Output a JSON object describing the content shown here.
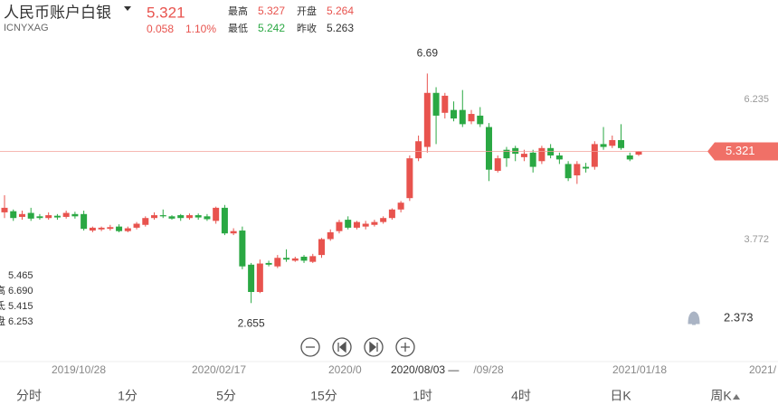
{
  "header": {
    "title": "人民币账户白银",
    "code": "ICNYXAG",
    "price": 5.321,
    "change": 0.058,
    "change_pct": "1.10%",
    "stats": [
      {
        "label": "最高",
        "value": 5.327
      },
      {
        "label": "开盘",
        "value": 5.264
      },
      {
        "label": "最低",
        "value": 5.242
      },
      {
        "label": "昨收",
        "value": 5.263
      }
    ]
  },
  "side_info": [
    {
      "label": "",
      "value": "5.465"
    },
    {
      "label": "高",
      "value": "6.690"
    },
    {
      "label": "氐",
      "value": "5.415"
    },
    {
      "label": "盘",
      "value": "6.253"
    }
  ],
  "chart_data": {
    "type": "candlestick",
    "up_color": "#e8534e",
    "down_color": "#2aa843",
    "ylim": [
      1.706,
      7.268
    ],
    "yticks": [
      3.772,
      6.235
    ],
    "open": [
      4.25,
      4.27,
      4.17,
      4.24,
      4.18,
      4.15,
      4.19,
      4.17,
      4.22,
      4.22,
      3.93,
      3.95,
      3.96,
      4.0,
      3.92,
      3.98,
      4.03,
      4.15,
      4.2,
      4.18,
      4.2,
      4.15,
      4.2,
      4.18,
      4.1,
      4.33,
      3.88,
      3.93,
      3.33,
      2.85,
      3.36,
      3.3,
      3.45,
      3.4,
      3.47,
      3.38,
      3.5,
      3.78,
      3.92,
      4.12,
      3.98,
      4.0,
      4.03,
      4.08,
      4.15,
      4.3,
      4.5,
      5.2,
      5.4,
      6.35,
      6.0,
      6.05,
      6.05,
      5.85,
      5.95,
      5.75,
      4.98,
      5.35,
      5.38,
      5.22,
      5.3,
      5.15,
      5.38,
      5.25,
      5.1,
      4.9,
      5.05,
      5.05,
      5.45,
      5.42,
      5.52,
      5.25,
      5.264
    ],
    "high": [
      4.55,
      4.3,
      4.28,
      4.33,
      4.22,
      4.25,
      4.22,
      4.28,
      4.26,
      4.28,
      4.0,
      4.0,
      4.03,
      4.04,
      4.0,
      4.08,
      4.18,
      4.25,
      4.3,
      4.2,
      4.22,
      4.23,
      4.23,
      4.22,
      4.35,
      4.38,
      3.97,
      4.0,
      3.36,
      3.42,
      3.4,
      3.5,
      3.6,
      3.47,
      3.5,
      3.52,
      3.8,
      3.95,
      4.12,
      4.18,
      4.1,
      4.1,
      4.12,
      4.18,
      4.32,
      4.45,
      5.25,
      5.6,
      6.69,
      6.45,
      6.35,
      6.2,
      6.4,
      6.05,
      6.1,
      5.82,
      5.25,
      5.4,
      5.42,
      5.35,
      5.35,
      5.42,
      5.45,
      5.3,
      5.15,
      5.15,
      5.12,
      5.5,
      5.75,
      5.6,
      5.8,
      5.3,
      5.327
    ],
    "low": [
      4.15,
      4.1,
      4.12,
      4.1,
      4.12,
      4.12,
      4.12,
      4.14,
      4.14,
      3.93,
      3.9,
      3.92,
      3.93,
      3.9,
      3.9,
      3.95,
      4.0,
      4.12,
      4.15,
      4.12,
      4.1,
      4.12,
      4.12,
      4.1,
      4.05,
      3.85,
      3.85,
      3.25,
      2.655,
      2.83,
      3.3,
      3.27,
      3.38,
      3.38,
      3.36,
      3.36,
      3.45,
      3.75,
      3.88,
      3.95,
      3.95,
      3.95,
      4.0,
      4.05,
      4.12,
      4.25,
      4.45,
      5.15,
      5.3,
      5.45,
      5.9,
      5.85,
      5.75,
      5.8,
      5.75,
      4.8,
      4.95,
      5.05,
      5.15,
      5.15,
      4.95,
      5.1,
      5.2,
      5.1,
      4.8,
      4.75,
      4.95,
      5.0,
      5.35,
      5.38,
      5.35,
      5.15,
      5.242
    ],
    "close": [
      4.33,
      4.15,
      4.22,
      4.14,
      4.15,
      4.2,
      4.16,
      4.24,
      4.18,
      3.96,
      3.98,
      3.98,
      3.99,
      3.92,
      3.97,
      4.05,
      4.15,
      4.2,
      4.18,
      4.14,
      4.15,
      4.2,
      4.16,
      4.13,
      4.33,
      3.88,
      3.92,
      3.3,
      2.85,
      3.35,
      3.33,
      3.45,
      3.42,
      3.44,
      3.4,
      3.48,
      3.78,
      3.9,
      4.08,
      3.98,
      4.08,
      4.05,
      4.08,
      4.15,
      4.3,
      4.42,
      5.2,
      5.5,
      6.35,
      5.95,
      6.3,
      5.9,
      5.8,
      5.98,
      5.8,
      5.0,
      5.2,
      5.2,
      5.28,
      5.28,
      5.05,
      5.38,
      5.25,
      5.18,
      4.85,
      5.1,
      5.02,
      5.45,
      5.4,
      5.52,
      5.38,
      5.18,
      5.321
    ],
    "max_label": "6.69",
    "min_label": "2.655",
    "alert_price": 2.373,
    "x_labels": [
      "2019/10/28",
      "2020/02/17",
      "2020/0",
      "2020/08/03 —",
      "/09/28",
      "2021/01/18",
      "2021/"
    ]
  },
  "tabs": [
    "分时",
    "1分",
    "5分",
    "15分",
    "1时",
    "4时",
    "日K",
    "周K"
  ]
}
